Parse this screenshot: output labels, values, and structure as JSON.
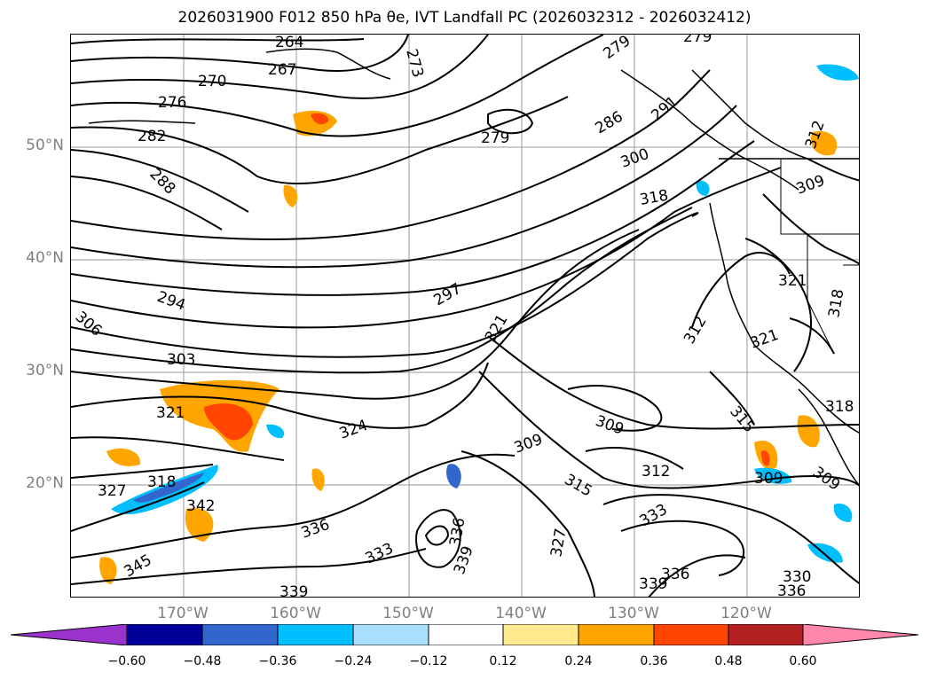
{
  "title": "2026031900 F012 850 hPa θe, IVT Landfall PC (2026032312 - 2026032412)",
  "map": {
    "lat_labels": [
      "50°N",
      "40°N",
      "30°N",
      "20°N"
    ],
    "lon_labels": [
      "170°W",
      "160°W",
      "150°W",
      "140°W",
      "130°W",
      "120°W"
    ],
    "contour_labels": [
      "264",
      "267",
      "270",
      "273",
      "276",
      "279",
      "279",
      "279",
      "282",
      "286",
      "288",
      "291",
      "294",
      "297",
      "300",
      "303",
      "306",
      "309",
      "309",
      "309",
      "309",
      "309",
      "312",
      "312",
      "312",
      "315",
      "315",
      "318",
      "318",
      "318",
      "318",
      "321",
      "321",
      "321",
      "321",
      "324",
      "327",
      "327",
      "330",
      "333",
      "333",
      "336",
      "336",
      "336",
      "336",
      "339",
      "339",
      "339",
      "342",
      "345"
    ]
  },
  "colorbar": {
    "ticks": [
      "−0.60",
      "−0.48",
      "−0.36",
      "−0.24",
      "−0.12",
      "0.12",
      "0.24",
      "0.36",
      "0.48",
      "0.60"
    ],
    "colors": [
      "#9933cc",
      "#000099",
      "#3366cc",
      "#00bfff",
      "#aadfff",
      "#ffffff",
      "#ffe98f",
      "#ffa500",
      "#ff4500",
      "#b22222",
      "#ff88aa"
    ]
  }
}
